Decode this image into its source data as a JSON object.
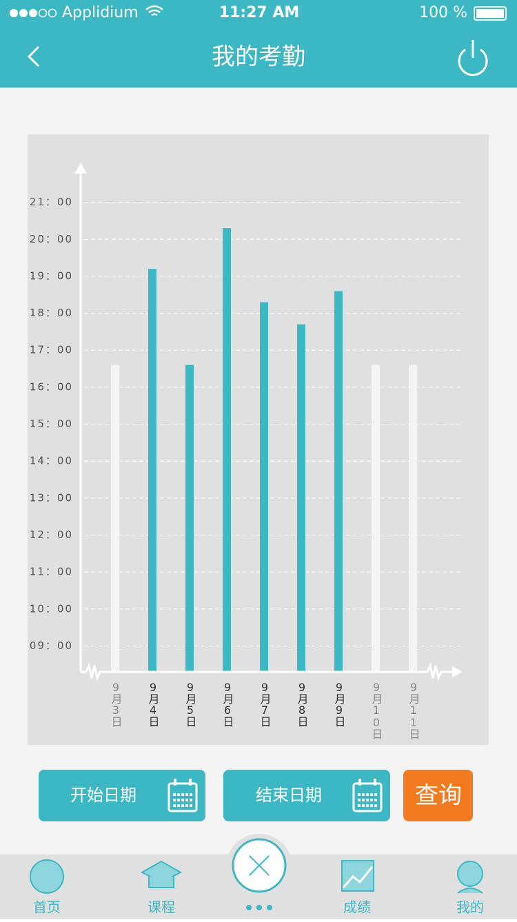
{
  "status_bar": {
    "carrier": "Applidium",
    "time": "11:27 AM",
    "battery": "100 %"
  },
  "header": {
    "title": "我的考勤"
  },
  "chart_data": {
    "type": "bar",
    "categories": [
      "9月3日",
      "9月4日",
      "9月5日",
      "9月6日",
      "9月7日",
      "9月8日",
      "9月9日",
      "9月10日",
      "9月11日"
    ],
    "values": [
      16.6,
      19.2,
      16.6,
      20.3,
      18.3,
      17.7,
      18.6,
      16.6,
      16.6
    ],
    "colors": [
      "#f4f4f4",
      "#3bb8c4",
      "#3bb8c4",
      "#3bb8c4",
      "#3bb8c4",
      "#3bb8c4",
      "#3bb8c4",
      "#f4f4f4",
      "#f4f4f4"
    ],
    "ylim": [
      8.3,
      22
    ],
    "yticks": [
      {
        "value": 9,
        "label": "09：00"
      },
      {
        "value": 10,
        "label": "10：00"
      },
      {
        "value": 11,
        "label": "11：00"
      },
      {
        "value": 12,
        "label": "12：00"
      },
      {
        "value": 13,
        "label": "13：00"
      },
      {
        "value": 14,
        "label": "14：00"
      },
      {
        "value": 15,
        "label": "15：00"
      },
      {
        "value": 16,
        "label": "16：00"
      },
      {
        "value": 17,
        "label": "17：00"
      },
      {
        "value": 18,
        "label": "18：00"
      },
      {
        "value": 19,
        "label": "19：00"
      },
      {
        "value": 20,
        "label": "20：00"
      },
      {
        "value": 21,
        "label": "21：00"
      }
    ],
    "grid": true
  },
  "buttons": {
    "start_date": "开始日期",
    "end_date": "结束日期",
    "query": "查询"
  },
  "tabs": [
    "首页",
    "课程",
    "成绩",
    "我的"
  ]
}
